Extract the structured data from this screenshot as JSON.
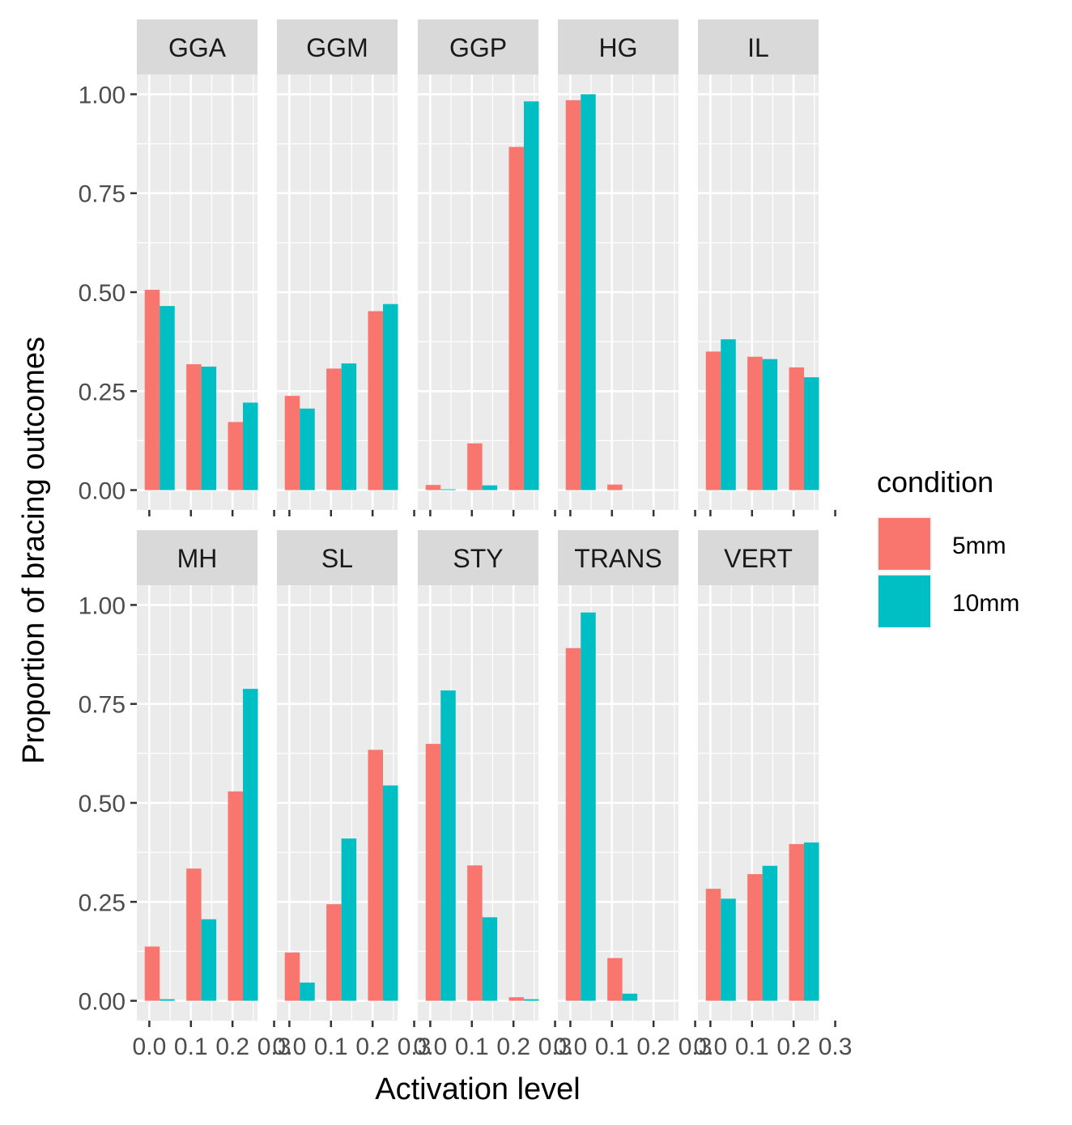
{
  "chart_data": {
    "type": "bar",
    "xlabel": "Activation level",
    "ylabel": "Proportion of bracing outcomes",
    "ylim": [
      -0.05,
      1.05
    ],
    "yticks": [
      0,
      0.25,
      0.5,
      0.75,
      1
    ],
    "ytick_labels": [
      "0.00",
      "0.25",
      "0.50",
      "0.75",
      "1.00"
    ],
    "xlim": [
      -0.03,
      0.26
    ],
    "xticks": [
      0.0,
      0.1,
      0.2,
      0.3
    ],
    "xtick_labels": [
      "0.0",
      "0.1",
      "0.2",
      "0.3"
    ],
    "grid": true,
    "legend": {
      "title": "condition",
      "position": "right",
      "entries": [
        {
          "label": "5mm",
          "color": "#F8766D"
        },
        {
          "label": "10mm",
          "color": "#00BFC4"
        }
      ]
    },
    "categories": [
      0.025,
      0.125,
      0.225
    ],
    "facets": [
      {
        "name": "GGA",
        "series": [
          {
            "name": "5mm",
            "values": [
              0.506,
              0.318,
              0.172
            ]
          },
          {
            "name": "10mm",
            "values": [
              0.465,
              0.312,
              0.221
            ]
          }
        ]
      },
      {
        "name": "GGM",
        "series": [
          {
            "name": "5mm",
            "values": [
              0.238,
              0.307,
              0.452
            ]
          },
          {
            "name": "10mm",
            "values": [
              0.206,
              0.32,
              0.47
            ]
          }
        ]
      },
      {
        "name": "GGP",
        "series": [
          {
            "name": "5mm",
            "values": [
              0.013,
              0.118,
              0.867
            ]
          },
          {
            "name": "10mm",
            "values": [
              0.002,
              0.012,
              0.982
            ]
          }
        ]
      },
      {
        "name": "HG",
        "series": [
          {
            "name": "5mm",
            "values": [
              0.985,
              0.014,
              0
            ]
          },
          {
            "name": "10mm",
            "values": [
              1.0,
              0,
              0
            ]
          }
        ]
      },
      {
        "name": "IL",
        "series": [
          {
            "name": "5mm",
            "values": [
              0.35,
              0.337,
              0.31
            ]
          },
          {
            "name": "10mm",
            "values": [
              0.381,
              0.331,
              0.285
            ]
          }
        ]
      },
      {
        "name": "MH",
        "series": [
          {
            "name": "5mm",
            "values": [
              0.137,
              0.334,
              0.529
            ]
          },
          {
            "name": "10mm",
            "values": [
              0.004,
              0.206,
              0.788
            ]
          }
        ]
      },
      {
        "name": "SL",
        "series": [
          {
            "name": "5mm",
            "values": [
              0.122,
              0.244,
              0.634
            ]
          },
          {
            "name": "10mm",
            "values": [
              0.046,
              0.41,
              0.544
            ]
          }
        ]
      },
      {
        "name": "STY",
        "series": [
          {
            "name": "5mm",
            "values": [
              0.649,
              0.342,
              0.009
            ]
          },
          {
            "name": "10mm",
            "values": [
              0.784,
              0.211,
              0.004
            ]
          }
        ]
      },
      {
        "name": "TRANS",
        "series": [
          {
            "name": "5mm",
            "values": [
              0.891,
              0.108,
              0
            ]
          },
          {
            "name": "10mm",
            "values": [
              0.981,
              0.018,
              0
            ]
          }
        ]
      },
      {
        "name": "VERT",
        "series": [
          {
            "name": "5mm",
            "values": [
              0.283,
              0.32,
              0.396
            ]
          },
          {
            "name": "10mm",
            "values": [
              0.258,
              0.341,
              0.4
            ]
          }
        ]
      }
    ]
  }
}
